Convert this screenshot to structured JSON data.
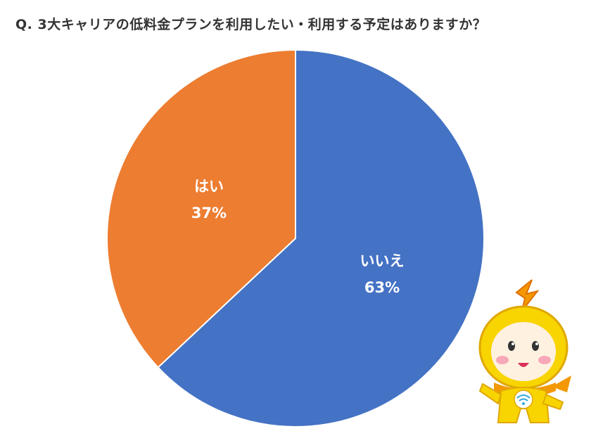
{
  "title": "Q.  3大キャリアの低料金プランを利用したい・利用する予定はありますか？",
  "colors": {
    "yes": "#ED7D31",
    "no": "#4472C4",
    "label": "#ffffff"
  },
  "mascot_icon": "yellow-mascot-character-icon",
  "chart_data": {
    "type": "pie",
    "title": "Q.  3大キャリアの低料金プランを利用したい・利用する予定はありますか？",
    "slices": [
      {
        "label": "いいえ",
        "value": 63,
        "value_label": "63%",
        "color": "#4472C4"
      },
      {
        "label": "はい",
        "value": 37,
        "value_label": "37%",
        "color": "#ED7D31"
      }
    ],
    "start_angle": "12 o'clock",
    "direction": "clockwise",
    "legend": "none"
  }
}
